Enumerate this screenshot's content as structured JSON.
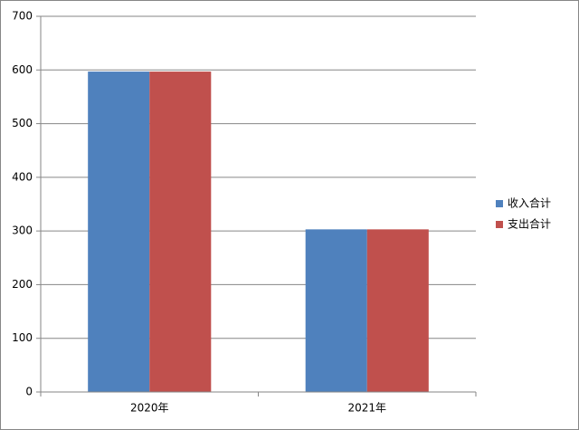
{
  "chart_data": {
    "type": "bar",
    "categories": [
      "2020年",
      "2021年"
    ],
    "series": [
      {
        "name": "收入合计",
        "color": "#4f81bd",
        "values": [
          597,
          303
        ]
      },
      {
        "name": "支出合计",
        "color": "#c0504d",
        "values": [
          597,
          303
        ]
      }
    ],
    "ylim": [
      0,
      700
    ],
    "yticks": [
      0,
      100,
      200,
      300,
      400,
      500,
      600,
      700
    ],
    "grid": true,
    "legend": "right"
  }
}
